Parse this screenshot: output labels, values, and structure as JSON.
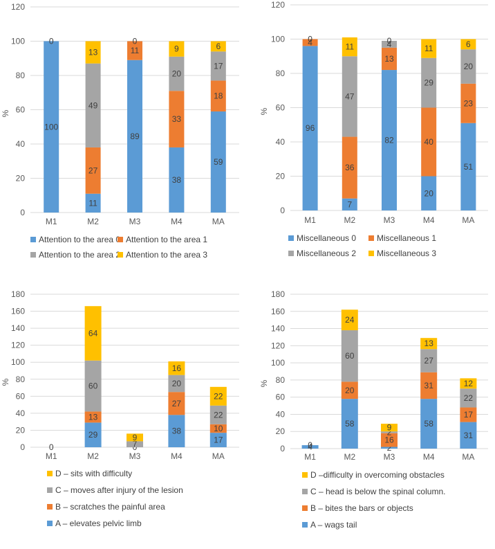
{
  "colors": {
    "blue": "#5b9bd5",
    "orange": "#ed7d31",
    "gray": "#a5a5a5",
    "yellow": "#ffc000"
  },
  "chart_data": [
    {
      "type": "bar",
      "stacked": true,
      "title": "",
      "ylabel": "%",
      "ylim": [
        0,
        120
      ],
      "yticks": [
        0,
        20,
        40,
        60,
        80,
        100,
        120
      ],
      "categories": [
        "M1",
        "M2",
        "M3",
        "M4",
        "MA"
      ],
      "legend_layout": "2col",
      "series": [
        {
          "name": "Attention to the area 0",
          "color": "#5b9bd5",
          "values": [
            100,
            11,
            89,
            38,
            59
          ]
        },
        {
          "name": "Attention to the area 1",
          "color": "#ed7d31",
          "values": [
            0,
            27,
            11,
            33,
            18
          ]
        },
        {
          "name": "Attention to the area 2",
          "color": "#a5a5a5",
          "values": [
            0,
            49,
            0,
            20,
            17
          ]
        },
        {
          "name": "Attention to the area 3",
          "color": "#ffc000",
          "values": [
            0,
            13,
            0,
            9,
            6
          ]
        }
      ],
      "labels": [
        [
          "100",
          "",
          "",
          "0"
        ],
        [
          "11",
          "27",
          "49",
          "13"
        ],
        [
          "89",
          "11",
          "",
          "0"
        ],
        [
          "38",
          "33",
          "20",
          "9"
        ],
        [
          "59",
          "18",
          "17",
          "6"
        ]
      ]
    },
    {
      "type": "bar",
      "stacked": true,
      "title": "",
      "ylabel": "%",
      "ylim": [
        0,
        120
      ],
      "yticks": [
        0,
        20,
        40,
        60,
        80,
        100,
        120
      ],
      "categories": [
        "M1",
        "M2",
        "M3",
        "M4",
        "MA"
      ],
      "legend_layout": "2col",
      "series": [
        {
          "name": "Miscellaneous 0",
          "color": "#5b9bd5",
          "values": [
            96,
            7,
            82,
            20,
            51
          ]
        },
        {
          "name": "Miscellaneous 1",
          "color": "#ed7d31",
          "values": [
            4,
            36,
            13,
            40,
            23
          ]
        },
        {
          "name": "Miscellaneous 2",
          "color": "#a5a5a5",
          "values": [
            0,
            47,
            4,
            29,
            20
          ]
        },
        {
          "name": "Miscellaneous 3",
          "color": "#ffc000",
          "values": [
            0,
            11,
            0,
            11,
            6
          ]
        }
      ],
      "labels": [
        [
          "96",
          "4",
          "",
          "0"
        ],
        [
          "7",
          "36",
          "47",
          "11"
        ],
        [
          "82",
          "13",
          "4",
          "0"
        ],
        [
          "20",
          "40",
          "29",
          "11"
        ],
        [
          "51",
          "23",
          "20",
          "6"
        ]
      ]
    },
    {
      "type": "bar",
      "stacked": true,
      "title": "",
      "ylabel": "%",
      "ylim": [
        0,
        180
      ],
      "yticks": [
        0,
        20,
        40,
        60,
        80,
        100,
        120,
        140,
        160,
        180
      ],
      "categories": [
        "M1",
        "M2",
        "M3",
        "M4",
        "MA"
      ],
      "legend_layout": "1col",
      "series": [
        {
          "name": "A – elevates pelvic limb",
          "color": "#5b9bd5",
          "values": [
            0,
            29,
            0,
            38,
            17
          ]
        },
        {
          "name": "B – scratches the painful area",
          "color": "#ed7d31",
          "values": [
            0,
            13,
            0,
            27,
            10
          ]
        },
        {
          "name": "C – moves after injury of the lesion",
          "color": "#a5a5a5",
          "values": [
            0,
            60,
            7,
            20,
            22
          ]
        },
        {
          "name": "D – sits with difficulty",
          "color": "#ffc000",
          "values": [
            0,
            64,
            9,
            16,
            22
          ]
        }
      ],
      "labels": [
        [
          "",
          "",
          "",
          "0"
        ],
        [
          "29",
          "13",
          "60",
          "64"
        ],
        [
          "",
          "0",
          "7",
          "9"
        ],
        [
          "38",
          "27",
          "20",
          "16"
        ],
        [
          "17",
          "10",
          "22",
          "22"
        ]
      ]
    },
    {
      "type": "bar",
      "stacked": true,
      "title": "",
      "ylabel": "%",
      "ylim": [
        0,
        180
      ],
      "yticks": [
        0,
        20,
        40,
        60,
        80,
        100,
        120,
        140,
        160,
        180
      ],
      "categories": [
        "M1",
        "M2",
        "M3",
        "M4",
        "MA"
      ],
      "legend_layout": "1col",
      "series": [
        {
          "name": "A – wags tail",
          "color": "#5b9bd5",
          "values": [
            4,
            58,
            2,
            58,
            31
          ]
        },
        {
          "name": "B – bites the bars or objects",
          "color": "#ed7d31",
          "values": [
            0,
            20,
            16,
            31,
            17
          ]
        },
        {
          "name": "C – head is below the spinal column.",
          "color": "#a5a5a5",
          "values": [
            0,
            60,
            2,
            27,
            22
          ]
        },
        {
          "name": "D –difficulty in overcoming obstacles",
          "color": "#ffc000",
          "values": [
            0,
            24,
            9,
            13,
            12
          ]
        }
      ],
      "labels": [
        [
          "4",
          "",
          "",
          "0"
        ],
        [
          "58",
          "20",
          "60",
          "24"
        ],
        [
          "2",
          "16",
          "2",
          "9"
        ],
        [
          "58",
          "31",
          "27",
          "13"
        ],
        [
          "31",
          "17",
          "22",
          "12"
        ]
      ]
    }
  ]
}
